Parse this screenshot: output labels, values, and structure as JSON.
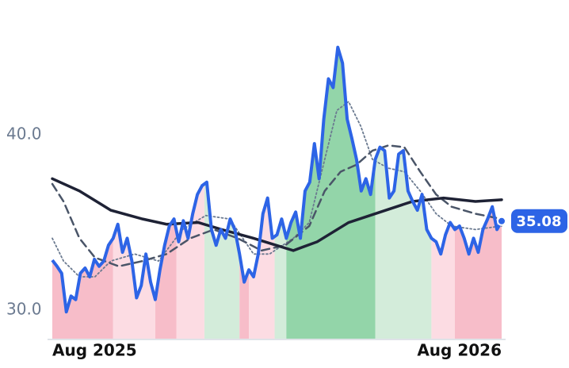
{
  "chart_data": {
    "type": "line",
    "xlim": [
      0,
      96
    ],
    "ylim": [
      28.37,
      47.7
    ],
    "yticks": [
      {
        "value": 30,
        "label": "30.0"
      },
      {
        "value": 40,
        "label": "40.0"
      }
    ],
    "xticks": [
      {
        "value": 0,
        "label": "Aug 2025"
      },
      {
        "value": 96,
        "label": "Aug 2026"
      }
    ],
    "series": [
      {
        "color": "#2d64e6",
        "values": [
          32.85,
          32.5,
          32.1,
          29.9,
          30.8,
          30.6,
          32.1,
          32.4,
          31.9,
          32.9,
          32.5,
          32.8,
          33.7,
          34.1,
          34.9,
          33.3,
          34.1,
          32.8,
          30.7,
          31.4,
          33.2,
          31.6,
          30.6,
          32.3,
          33.7,
          34.8,
          35.2,
          33.9,
          35.1,
          34.1,
          35.5,
          36.6,
          37.1,
          37.3,
          34.6,
          33.7,
          34.6,
          34.1,
          35.2,
          34.6,
          33.2,
          31.6,
          32.3,
          31.9,
          33.2,
          35.5,
          36.4,
          34.1,
          34.3,
          35.2,
          34.1,
          35.0,
          35.6,
          34.1,
          36.8,
          37.3,
          39.5,
          37.5,
          40.9,
          43.2,
          42.7,
          45.0,
          44.1,
          40.9,
          39.8,
          38.6,
          36.8,
          37.5,
          36.6,
          38.6,
          39.3,
          39.1,
          36.4,
          36.8,
          38.9,
          39.1,
          36.8,
          36.2,
          35.7,
          36.6,
          34.6,
          34.1,
          33.9,
          33.2,
          34.3,
          35.0,
          34.6,
          34.8,
          34.1,
          33.2,
          34.1,
          33.3,
          34.6,
          35.2,
          35.9,
          34.6,
          35.08
        ]
      }
    ],
    "lines": [
      {
        "color": "#6b7a90",
        "style": "dotted",
        "x": [
          0,
          2.4,
          5.8,
          9.1,
          12.5,
          17.6,
          22.7,
          27.8,
          32.8,
          37.9,
          43,
          46.4,
          51.5,
          54.9,
          58.2,
          60.8,
          63.3,
          65.9,
          68.4,
          71.8,
          75.2,
          78.6,
          82,
          85.3,
          90.4,
          96
        ],
        "values": [
          34.1,
          32.8,
          31.9,
          31.9,
          32.8,
          33.2,
          32.8,
          34.6,
          35.4,
          35.2,
          33.2,
          33.2,
          34.1,
          35.0,
          38.6,
          41.4,
          41.9,
          40.5,
          38.6,
          38.1,
          37.9,
          36.8,
          35.5,
          34.8,
          34.6,
          34.8
        ]
      },
      {
        "color": "#4a5568",
        "style": "dashed",
        "x": [
          0,
          2.4,
          5.8,
          9.1,
          14.2,
          19.3,
          24.4,
          29.5,
          34.5,
          39.6,
          44.7,
          49.8,
          54.9,
          58.2,
          61.6,
          65,
          68.4,
          71.8,
          75.2,
          78.6,
          82,
          85.3,
          90.4,
          96
        ],
        "values": [
          37.2,
          36.2,
          34.1,
          33.0,
          32.5,
          32.8,
          33.2,
          34.1,
          34.6,
          34.1,
          33.4,
          33.7,
          34.8,
          36.8,
          37.9,
          38.3,
          39.1,
          39.4,
          39.3,
          37.9,
          36.6,
          35.9,
          35.5,
          35.2
        ]
      },
      {
        "color": "#1e2235",
        "style": "solid",
        "x": [
          0,
          5.8,
          12.5,
          19.3,
          24.4,
          31.2,
          36.2,
          43,
          51.5,
          56.6,
          63.3,
          70.1,
          76.9,
          83.6,
          90.4,
          96
        ],
        "values": [
          37.5,
          36.8,
          35.7,
          35.2,
          34.9,
          35.0,
          34.6,
          34.1,
          33.4,
          33.9,
          35.0,
          35.6,
          36.2,
          36.4,
          36.2,
          36.3
        ]
      }
    ],
    "regions": [
      {
        "start": 0,
        "end": 13,
        "color": "#f7bdc9"
      },
      {
        "start": 13,
        "end": 22,
        "color": "#fcdce3"
      },
      {
        "start": 22,
        "end": 26.5,
        "color": "#f7bdc9"
      },
      {
        "start": 26.5,
        "end": 32.5,
        "color": "#fcdce3"
      },
      {
        "start": 32.5,
        "end": 40,
        "color": "#d3ecda"
      },
      {
        "start": 40,
        "end": 42,
        "color": "#f7bdc9"
      },
      {
        "start": 42,
        "end": 47.5,
        "color": "#fcdce3"
      },
      {
        "start": 47.5,
        "end": 50,
        "color": "#d3ecda"
      },
      {
        "start": 50,
        "end": 69,
        "color": "#93d5a9"
      },
      {
        "start": 69,
        "end": 81,
        "color": "#d3ecda"
      },
      {
        "start": 81,
        "end": 86,
        "color": "#fcdce3"
      },
      {
        "start": 86,
        "end": 96,
        "color": "#f7bdc9"
      }
    ]
  }
}
